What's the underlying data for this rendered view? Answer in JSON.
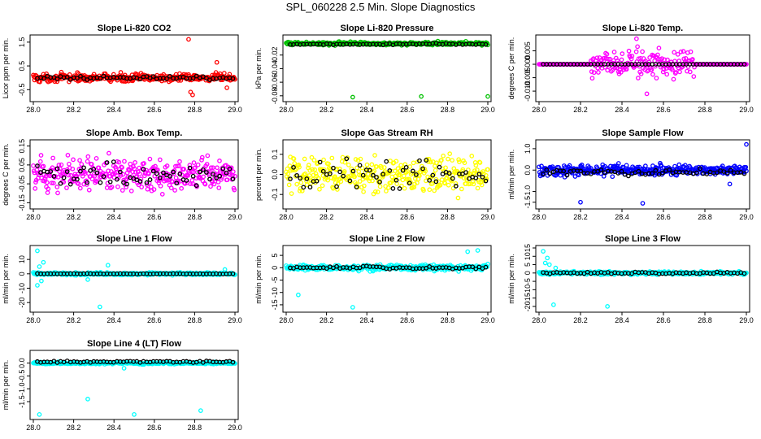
{
  "title": "SPL_060228  2.5 Min. Slope Diagnostics",
  "colors": {
    "red": "#ff0000",
    "green": "#00c000",
    "magenta": "#ff00ff",
    "yellow": "#ffff00",
    "blue": "#0000ff",
    "cyan": "#00ffff",
    "overlay": "#000000",
    "axis": "#000000"
  },
  "chart_data": [
    {
      "type": "scatter",
      "title": "Slope Li-820 CO2",
      "xlabel": "",
      "ylabel": "Licor ppm per min.",
      "color": "red",
      "xlim": [
        28.0,
        29.0
      ],
      "xticks": [
        "28.0",
        "28.2",
        "28.4",
        "28.6",
        "28.8",
        "29.0"
      ],
      "ylim": [
        -0.9,
        1.7
      ],
      "yticks": [
        {
          "v": 1.5,
          "t": "1.5"
        },
        {
          "v": 0.5,
          "t": "0.5"
        },
        {
          "v": -0.5,
          "t": "-0.5"
        }
      ],
      "base": 0.0,
      "spread": 0.28,
      "black_base": 0.0,
      "black_spread": 0.15,
      "outliers": [
        [
          28.77,
          1.62
        ],
        [
          28.91,
          0.65
        ],
        [
          28.78,
          -0.6
        ],
        [
          28.79,
          -0.72
        ],
        [
          28.96,
          -0.42
        ]
      ]
    },
    {
      "type": "scatter",
      "title": "Slope Li-820 Pressure",
      "xlabel": "",
      "ylabel": "kPa per min.",
      "color": "green",
      "xlim": [
        28.0,
        29.0
      ],
      "xticks": [
        "28.0",
        "28.2",
        "28.4",
        "28.6",
        "28.8",
        "29.0"
      ],
      "ylim": [
        -0.085,
        0.006
      ],
      "yticks": [
        {
          "v": -0.02,
          "t": "-0.02"
        },
        {
          "v": -0.04,
          "t": "-0.04"
        },
        {
          "v": -0.06,
          "t": "-0.06"
        },
        {
          "v": -0.08,
          "t": "-0.08"
        }
      ],
      "base": -0.003,
      "spread": 0.004,
      "black_base": -0.004,
      "black_spread": 0.002,
      "outliers": [
        [
          28.33,
          -0.082
        ],
        [
          28.67,
          -0.081
        ],
        [
          29.0,
          -0.081
        ]
      ]
    },
    {
      "type": "scatter",
      "title": "Slope Li-820 Temp.",
      "xlabel": "",
      "ylabel": "degrees C per min.",
      "color": "magenta",
      "xlim": [
        28.0,
        29.0
      ],
      "xticks": [
        "28.0",
        "28.2",
        "28.4",
        "28.6",
        "28.8",
        "29.0"
      ],
      "ylim": [
        -0.013,
        0.01
      ],
      "yticks": [
        {
          "v": 0.005,
          "t": "0.005"
        },
        {
          "v": 0.0,
          "t": "0.000"
        },
        {
          "v": -0.005,
          "t": "-0.005"
        },
        {
          "v": -0.01,
          "t": "-0.010"
        }
      ],
      "base": 0.0,
      "spread": 0.0,
      "burst": [
        28.25,
        28.75,
        0.0085
      ],
      "black_base": 0.0,
      "black_spread": 0.0,
      "outliers": [
        [
          28.47,
          0.0095
        ],
        [
          28.52,
          -0.011
        ]
      ]
    },
    {
      "type": "scatter",
      "title": "Slope Amb. Box Temp.",
      "xlabel": "",
      "ylabel": "degrees C per min.",
      "color": "magenta",
      "xlim": [
        28.0,
        29.0
      ],
      "xticks": [
        "28.0",
        "28.2",
        "28.4",
        "28.6",
        "28.8",
        "29.0"
      ],
      "ylim": [
        -0.17,
        0.17
      ],
      "yticks": [
        {
          "v": 0.15,
          "t": "0.15"
        },
        {
          "v": 0.05,
          "t": "0.05"
        },
        {
          "v": -0.05,
          "t": "-0.05"
        },
        {
          "v": -0.15,
          "t": "-0.15"
        }
      ],
      "base": 0.0,
      "spread": 0.16,
      "black_base": 0.0,
      "black_spread": 0.1,
      "outliers": []
    },
    {
      "type": "scatter",
      "title": "Slope Gas Stream RH",
      "xlabel": "",
      "ylabel": "percent per min.",
      "color": "yellow",
      "xlim": [
        28.0,
        29.0
      ],
      "xticks": [
        "28.0",
        "28.2",
        "28.4",
        "28.6",
        "28.8",
        "29.0"
      ],
      "ylim": [
        -0.16,
        0.16
      ],
      "yticks": [
        {
          "v": 0.1,
          "t": "0.1"
        },
        {
          "v": 0.0,
          "t": "0.0"
        },
        {
          "v": -0.1,
          "t": "-0.1"
        }
      ],
      "base": 0.0,
      "spread": 0.15,
      "black_base": 0.0,
      "black_spread": 0.13,
      "outliers": []
    },
    {
      "type": "scatter",
      "title": "Slope Sample Flow",
      "xlabel": "",
      "ylabel": "ml/min per min.",
      "color": "blue",
      "xlim": [
        28.0,
        29.0
      ],
      "xticks": [
        "28.0",
        "28.2",
        "28.4",
        "28.6",
        "28.8",
        "29.0"
      ],
      "ylim": [
        -1.7,
        1.3
      ],
      "yticks": [
        {
          "v": 1.0,
          "t": "1.0"
        },
        {
          "v": 0.0,
          "t": "0.0"
        },
        {
          "v": -1.0,
          "t": "-1.0"
        },
        {
          "v": -1.5,
          "t": "-1.5"
        }
      ],
      "base": 0.0,
      "spread": 0.4,
      "black_base": -0.1,
      "black_spread": 0.25,
      "outliers": [
        [
          28.2,
          -1.5
        ],
        [
          28.5,
          -1.55
        ],
        [
          29.0,
          1.2
        ],
        [
          28.92,
          -0.65
        ]
      ]
    },
    {
      "type": "scatter",
      "title": "Slope Line 1 Flow",
      "xlabel": "",
      "ylabel": "ml/min per min.",
      "color": "cyan",
      "xlim": [
        28.0,
        29.0
      ],
      "xticks": [
        "28.0",
        "28.2",
        "28.4",
        "28.6",
        "28.8",
        "29.0"
      ],
      "ylim": [
        -25,
        18
      ],
      "yticks": [
        {
          "v": 10,
          "t": "10"
        },
        {
          "v": 0,
          "t": "0"
        },
        {
          "v": -10,
          "t": "-10"
        },
        {
          "v": -20,
          "t": "-20"
        }
      ],
      "base": 0.0,
      "spread": 1.5,
      "black_base": 0.0,
      "black_spread": 0.3,
      "outliers": [
        [
          28.02,
          16
        ],
        [
          28.05,
          8
        ],
        [
          28.03,
          5
        ],
        [
          28.04,
          -5
        ],
        [
          28.02,
          -8
        ],
        [
          28.33,
          -23
        ],
        [
          28.37,
          6
        ],
        [
          28.95,
          3
        ],
        [
          28.27,
          -4
        ]
      ]
    },
    {
      "type": "scatter",
      "title": "Slope Line 2 Flow",
      "xlabel": "",
      "ylabel": "ml/min per min.",
      "color": "cyan",
      "xlim": [
        28.0,
        29.0
      ],
      "xticks": [
        "28.0",
        "28.2",
        "28.4",
        "28.6",
        "28.8",
        "29.0"
      ],
      "ylim": [
        -17,
        8
      ],
      "yticks": [
        {
          "v": 5,
          "t": "5"
        },
        {
          "v": 0,
          "t": "0"
        },
        {
          "v": -5,
          "t": "-5"
        },
        {
          "v": -10,
          "t": "-10"
        },
        {
          "v": -15,
          "t": "-15"
        }
      ],
      "base": 0.0,
      "spread": 1.8,
      "black_base": 0.0,
      "black_spread": 1.0,
      "outliers": [
        [
          28.06,
          -11
        ],
        [
          28.33,
          -16
        ],
        [
          28.9,
          6.5
        ],
        [
          28.95,
          7
        ]
      ]
    },
    {
      "type": "scatter",
      "title": "Slope Line 3 Flow",
      "xlabel": "",
      "ylabel": "ml/min per min.",
      "color": "cyan",
      "xlim": [
        28.0,
        29.0
      ],
      "xticks": [
        "28.0",
        "28.2",
        "28.4",
        "28.6",
        "28.8",
        "29.0"
      ],
      "ylim": [
        -22,
        15
      ],
      "yticks": [
        {
          "v": 15,
          "t": "15"
        },
        {
          "v": 10,
          "t": "10"
        },
        {
          "v": 5,
          "t": "5"
        },
        {
          "v": 0,
          "t": "0"
        },
        {
          "v": -5,
          "t": "-5"
        },
        {
          "v": -10,
          "t": "-10"
        },
        {
          "v": -15,
          "t": "-15"
        },
        {
          "v": -20,
          "t": "-20"
        }
      ],
      "base": 0.0,
      "spread": 1.5,
      "black_base": 0.0,
      "black_spread": 1.0,
      "outliers": [
        [
          28.02,
          13
        ],
        [
          28.04,
          9
        ],
        [
          28.03,
          6
        ],
        [
          28.05,
          5
        ],
        [
          28.07,
          -19
        ],
        [
          28.33,
          -20
        ],
        [
          28.08,
          3
        ]
      ]
    },
    {
      "type": "scatter",
      "title": "Slope Line 4 (LT) Flow",
      "xlabel": "",
      "ylabel": "ml/min per min.",
      "color": "cyan",
      "xlim": [
        28.0,
        29.0
      ],
      "xticks": [
        "28.0",
        "28.2",
        "28.4",
        "28.6",
        "28.8",
        "29.0"
      ],
      "ylim": [
        -2.1,
        0.4
      ],
      "yticks": [
        {
          "v": 0.0,
          "t": "0.0"
        },
        {
          "v": -0.5,
          "t": "-0.5"
        },
        {
          "v": -1.0,
          "t": "-1.0"
        },
        {
          "v": -1.5,
          "t": "-1.5"
        }
      ],
      "base": 0.0,
      "spread": 0.07,
      "black_base": 0.05,
      "black_spread": 0.06,
      "outliers": [
        [
          28.27,
          -1.4
        ],
        [
          28.03,
          -2.0
        ],
        [
          28.5,
          -2.0
        ],
        [
          28.83,
          -1.85
        ],
        [
          28.45,
          -0.2
        ]
      ]
    }
  ]
}
